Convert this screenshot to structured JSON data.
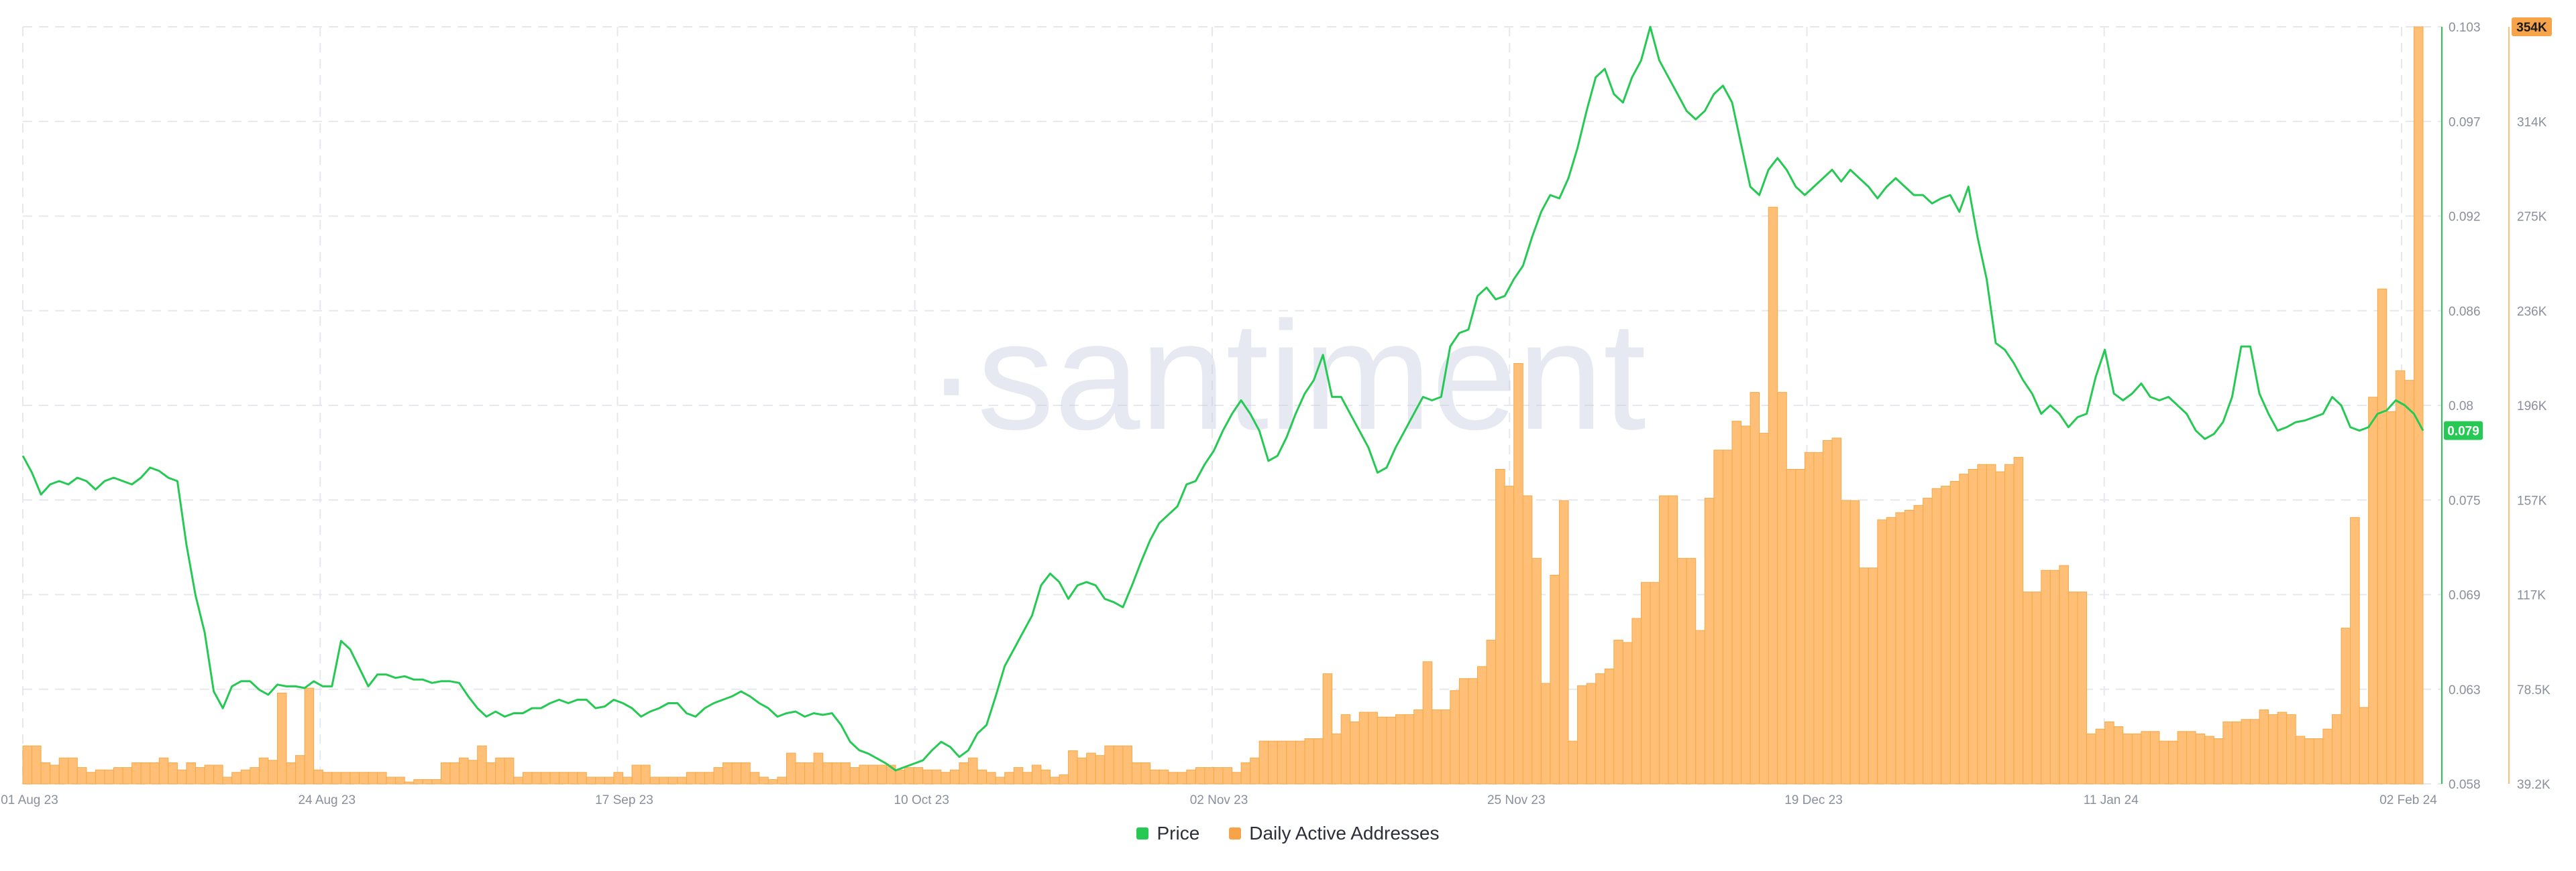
{
  "colors": {
    "price": "#26c953",
    "volume_fill": "#ffbf76",
    "volume_stroke": "#f5a947",
    "volume_badge": "#f7a34a",
    "grid": "#e6e8ee",
    "tick_text": "#8a8f9c",
    "watermark": "#c8cfe2"
  },
  "watermark": "·santiment",
  "legend": {
    "price_label": "Price",
    "volume_label": "Daily Active Addresses"
  },
  "chart_data": {
    "type": "line",
    "x_tick_labels": [
      "01 Aug 23",
      "24 Aug 23",
      "17 Sep 23",
      "10 Oct 23",
      "02 Nov 23",
      "25 Nov 23",
      "19 Dec 23",
      "11 Jan 24",
      "02 Feb 24"
    ],
    "xlim": [
      "2023-08-01",
      "2024-02-02"
    ],
    "grid": true,
    "legend_position": "bottom-center",
    "series": [
      {
        "name": "Price",
        "type": "line",
        "axis": "right-inner",
        "ylim": [
          0.058,
          0.103
        ],
        "y_tick_labels": [
          "0.103",
          "0.097",
          "0.092",
          "0.086",
          "0.08",
          "0.075",
          "0.069",
          "0.063",
          "0.058"
        ],
        "last_value_label": "0.079",
        "values": [
          0.0775,
          0.0765,
          0.0752,
          0.0758,
          0.076,
          0.0758,
          0.0762,
          0.076,
          0.0755,
          0.076,
          0.0762,
          0.076,
          0.0758,
          0.0762,
          0.0768,
          0.0766,
          0.0762,
          0.076,
          0.0722,
          0.0692,
          0.067,
          0.0635,
          0.0625,
          0.0638,
          0.0641,
          0.0641,
          0.0636,
          0.0633,
          0.0639,
          0.0638,
          0.0638,
          0.0637,
          0.0641,
          0.0638,
          0.0638,
          0.0665,
          0.066,
          0.0649,
          0.0638,
          0.0645,
          0.0645,
          0.0643,
          0.0644,
          0.0642,
          0.0642,
          0.064,
          0.0641,
          0.0641,
          0.064,
          0.0632,
          0.0625,
          0.062,
          0.0623,
          0.062,
          0.0622,
          0.0622,
          0.0625,
          0.0625,
          0.0628,
          0.063,
          0.0628,
          0.063,
          0.063,
          0.0625,
          0.0626,
          0.063,
          0.0628,
          0.0625,
          0.062,
          0.0623,
          0.0625,
          0.0628,
          0.0628,
          0.0622,
          0.062,
          0.0625,
          0.0628,
          0.063,
          0.0632,
          0.0635,
          0.0632,
          0.0628,
          0.0625,
          0.062,
          0.0622,
          0.0623,
          0.062,
          0.0622,
          0.0621,
          0.0622,
          0.0615,
          0.0605,
          0.06,
          0.0598,
          0.0595,
          0.0592,
          0.0588,
          0.059,
          0.0592,
          0.0594,
          0.06,
          0.0605,
          0.0602,
          0.0596,
          0.06,
          0.061,
          0.0615,
          0.0632,
          0.065,
          0.066,
          0.067,
          0.068,
          0.0698,
          0.0705,
          0.07,
          0.069,
          0.0698,
          0.07,
          0.0698,
          0.069,
          0.0688,
          0.0685,
          0.0698,
          0.0712,
          0.0725,
          0.0735,
          0.074,
          0.0745,
          0.0758,
          0.076,
          0.077,
          0.0778,
          0.079,
          0.08,
          0.0808,
          0.08,
          0.079,
          0.0772,
          0.0775,
          0.0786,
          0.08,
          0.0812,
          0.082,
          0.0835,
          0.081,
          0.081,
          0.08,
          0.079,
          0.078,
          0.0765,
          0.0768,
          0.078,
          0.079,
          0.08,
          0.081,
          0.0808,
          0.081,
          0.084,
          0.0848,
          0.085,
          0.087,
          0.0875,
          0.0868,
          0.087,
          0.088,
          0.0888,
          0.0905,
          0.092,
          0.093,
          0.0928,
          0.094,
          0.0958,
          0.098,
          0.1,
          0.1005,
          0.099,
          0.0985,
          0.1,
          0.101,
          0.103,
          0.101,
          0.1,
          0.099,
          0.098,
          0.0975,
          0.098,
          0.099,
          0.0995,
          0.0985,
          0.096,
          0.0935,
          0.093,
          0.0945,
          0.0952,
          0.0945,
          0.0935,
          0.093,
          0.0935,
          0.094,
          0.0945,
          0.0938,
          0.0945,
          0.094,
          0.0935,
          0.0928,
          0.0935,
          0.094,
          0.0935,
          0.093,
          0.093,
          0.0925,
          0.0928,
          0.093,
          0.092,
          0.0935,
          0.0905,
          0.088,
          0.0842,
          0.0838,
          0.083,
          0.082,
          0.0812,
          0.08,
          0.0805,
          0.08,
          0.0792,
          0.0798,
          0.08,
          0.0822,
          0.0838,
          0.0812,
          0.0808,
          0.0812,
          0.0818,
          0.081,
          0.0808,
          0.081,
          0.0805,
          0.08,
          0.079,
          0.0785,
          0.0788,
          0.0795,
          0.081,
          0.084,
          0.084,
          0.0812,
          0.08,
          0.079,
          0.0792,
          0.0795,
          0.0796,
          0.0798,
          0.08,
          0.081,
          0.0805,
          0.0792,
          0.079,
          0.0792,
          0.08,
          0.0802,
          0.0808,
          0.0805,
          0.08,
          0.079
        ]
      },
      {
        "name": "Daily Active Addresses",
        "type": "bar",
        "axis": "right-outer",
        "ylim": [
          39200,
          354000
        ],
        "y_tick_labels": [
          "354K",
          "314K",
          "275K",
          "236K",
          "196K",
          "157K",
          "117K",
          "78.5K",
          "39.2K"
        ],
        "last_value_label": "354K",
        "values": [
          55000,
          55000,
          48000,
          47000,
          50000,
          50000,
          46000,
          44000,
          45000,
          45000,
          46000,
          46000,
          48000,
          48000,
          48000,
          50000,
          48000,
          45000,
          48000,
          46000,
          47000,
          47000,
          42000,
          44000,
          45000,
          46000,
          50000,
          49000,
          77000,
          48000,
          51000,
          79000,
          45000,
          44000,
          44000,
          44000,
          44000,
          44000,
          44000,
          44000,
          42000,
          42000,
          40000,
          41000,
          41000,
          41000,
          48000,
          48000,
          50000,
          49000,
          55000,
          48000,
          50000,
          50000,
          42000,
          44000,
          44000,
          44000,
          44000,
          44000,
          44000,
          44000,
          42000,
          42000,
          42000,
          44000,
          42000,
          47000,
          47000,
          42000,
          42000,
          42000,
          42000,
          44000,
          44000,
          44000,
          46000,
          48000,
          48000,
          48000,
          44000,
          42000,
          41000,
          42000,
          52000,
          48000,
          48000,
          52000,
          48000,
          48000,
          48000,
          46000,
          47000,
          47000,
          47000,
          47000,
          45000,
          46000,
          46000,
          45000,
          45000,
          44000,
          45000,
          48000,
          50000,
          45000,
          44000,
          42000,
          44000,
          46000,
          44000,
          47000,
          45000,
          42000,
          43000,
          53000,
          50000,
          52000,
          51000,
          55000,
          55000,
          55000,
          48000,
          48000,
          45000,
          45000,
          44000,
          44000,
          45000,
          46000,
          46000,
          46000,
          46000,
          44000,
          48000,
          50000,
          57000,
          57000,
          57000,
          57000,
          57000,
          58000,
          58000,
          85000,
          60000,
          68000,
          65000,
          69000,
          69000,
          67000,
          67000,
          68000,
          68000,
          70000,
          90000,
          70000,
          70000,
          78000,
          83000,
          83000,
          88000,
          99000,
          170000,
          163000,
          214000,
          159000,
          133000,
          81000,
          126000,
          157000,
          57000,
          80000,
          81000,
          85000,
          87000,
          99000,
          98000,
          108000,
          123000,
          123000,
          159000,
          159000,
          133000,
          133000,
          103000,
          158000,
          178000,
          178000,
          190000,
          188000,
          202000,
          185000,
          279000,
          202000,
          170000,
          170000,
          177000,
          177000,
          182000,
          183000,
          157000,
          157000,
          129000,
          129000,
          149000,
          150000,
          152000,
          153000,
          155000,
          158000,
          162000,
          163000,
          165000,
          168000,
          170000,
          172000,
          172000,
          169000,
          172000,
          175000,
          119000,
          119000,
          128000,
          128000,
          130000,
          119000,
          119000,
          60000,
          62000,
          65000,
          63000,
          60000,
          60000,
          61000,
          61000,
          57000,
          57000,
          61000,
          61000,
          60000,
          59000,
          58000,
          65000,
          65000,
          66000,
          66000,
          70000,
          68000,
          69000,
          68000,
          59000,
          58000,
          58000,
          62000,
          68000,
          104000,
          150000,
          71000,
          200000,
          245000,
          194000,
          211000,
          207000,
          354000
        ]
      }
    ]
  }
}
